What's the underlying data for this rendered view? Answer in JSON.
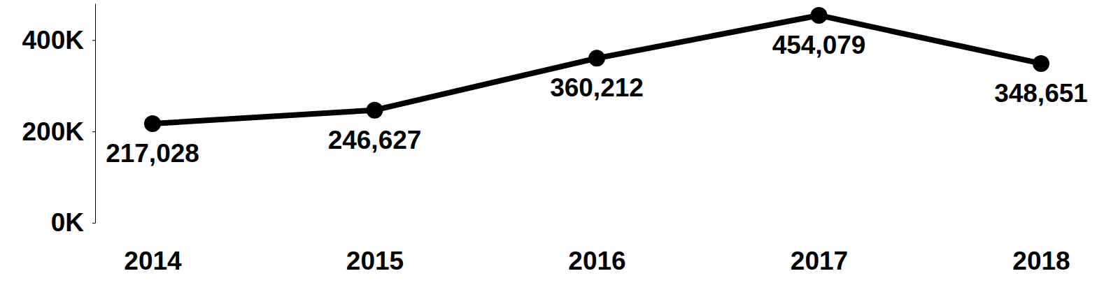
{
  "chart_data": {
    "type": "line",
    "categories": [
      "2014",
      "2015",
      "2016",
      "2017",
      "2018"
    ],
    "values": [
      217028,
      246627,
      360212,
      454079,
      348651
    ],
    "value_labels": [
      "217,028",
      "246,627",
      "360,212",
      "454,079",
      "348,651"
    ],
    "color": "#000000",
    "marker": "circle",
    "data_labels": true,
    "grid": false,
    "ylim": [
      0,
      480000
    ],
    "yticks": [
      {
        "value": 0,
        "label": "0K"
      },
      {
        "value": 200000,
        "label": "200K"
      },
      {
        "value": 400000,
        "label": "400K"
      }
    ]
  }
}
